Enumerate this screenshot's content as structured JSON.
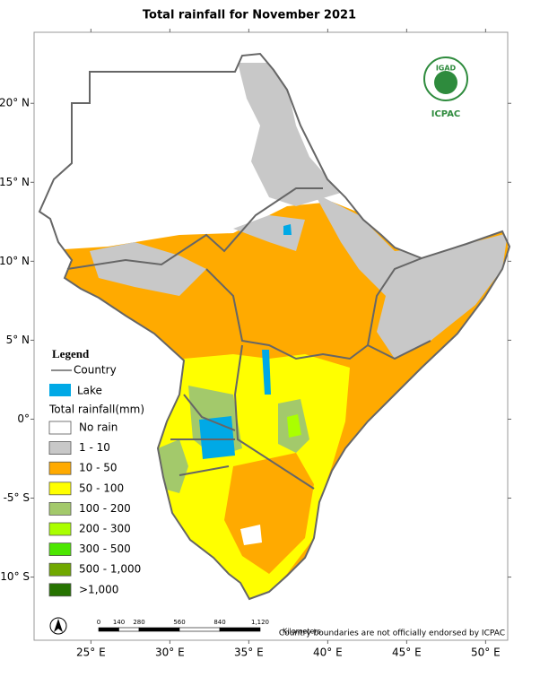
{
  "title": "Total rainfall for November 2021",
  "lonlim": [
    21.4,
    51.4
  ],
  "latlim": [
    -14.0,
    24.5
  ],
  "lon_ticks": [
    {
      "value": 25,
      "label": "25° E"
    },
    {
      "value": 30,
      "label": "30° E"
    },
    {
      "value": 35,
      "label": "35° E"
    },
    {
      "value": 40,
      "label": "40° E"
    },
    {
      "value": 45,
      "label": "45° E"
    },
    {
      "value": 50,
      "label": "50° E"
    }
  ],
  "lat_ticks": [
    {
      "value": 20,
      "label": "20° N"
    },
    {
      "value": 15,
      "label": "15° N"
    },
    {
      "value": 10,
      "label": "10° N"
    },
    {
      "value": 5,
      "label": "5° N"
    },
    {
      "value": 0,
      "label": "0°"
    },
    {
      "value": -5,
      "label": "-5° S"
    },
    {
      "value": -10,
      "label": "-10° S"
    }
  ],
  "legend": {
    "title": "Legend",
    "country": "Country",
    "lake": {
      "label": "Lake",
      "color": "#00a9e6"
    },
    "rainfall_title": "Total rainfall(mm)",
    "classes": [
      {
        "label": "No rain",
        "color": "#ffffff"
      },
      {
        "label": "1 - 10",
        "color": "#c8c8c8"
      },
      {
        "label": "10 - 50",
        "color": "#ffaa00"
      },
      {
        "label": "50 - 100",
        "color": "#ffff00"
      },
      {
        "label": "100 - 200",
        "color": "#a3c96b"
      },
      {
        "label": "200 - 300",
        "color": "#aaff00"
      },
      {
        "label": "300 - 500",
        "color": "#4ce600"
      },
      {
        "label": "500 - 1,000",
        "color": "#70a800"
      },
      {
        "label": ">1,000",
        "color": "#267300"
      }
    ]
  },
  "scale_bar": {
    "ticks": [
      0,
      140,
      280,
      560,
      840,
      {
        "value": 1120,
        "label": "1,120"
      }
    ],
    "unit": "Kilometers"
  },
  "note": "Country boundaries are not officially endorsed by ICPAC",
  "logo": {
    "top": "IGAD",
    "bottom": "ICPAC"
  }
}
